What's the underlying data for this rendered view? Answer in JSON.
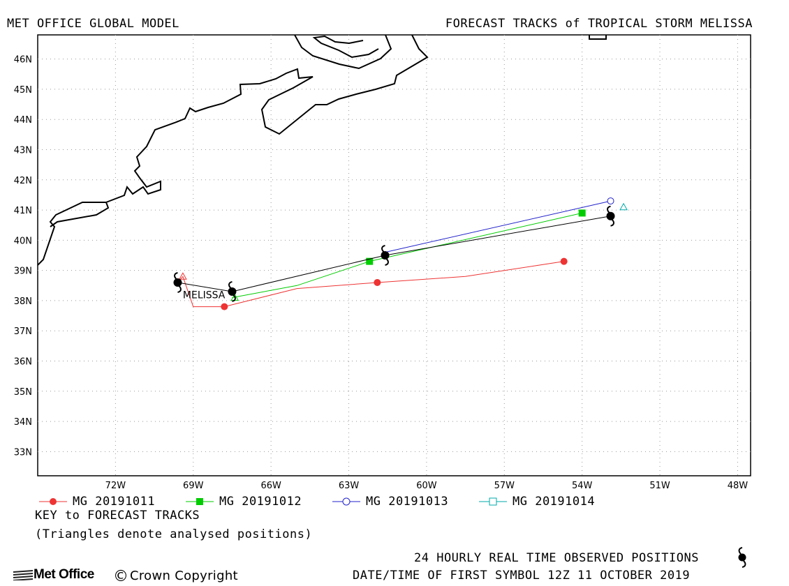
{
  "header": {
    "model": "MET OFFICE GLOBAL MODEL",
    "title": "FORECAST TRACKS of TROPICAL STORM MELISSA"
  },
  "map": {
    "lon_range": [
      -75,
      -47.5
    ],
    "lat_range": [
      32.2,
      46.8
    ],
    "lon_ticks": [
      {
        "value": -72,
        "label": "72W"
      },
      {
        "value": -69,
        "label": "69W"
      },
      {
        "value": -66,
        "label": "66W"
      },
      {
        "value": -63,
        "label": "63W"
      },
      {
        "value": -60,
        "label": "60W"
      },
      {
        "value": -57,
        "label": "57W"
      },
      {
        "value": -54,
        "label": "54W"
      },
      {
        "value": -51,
        "label": "51W"
      },
      {
        "value": -48,
        "label": "48W"
      }
    ],
    "lat_ticks": [
      {
        "value": 33,
        "label": "33N"
      },
      {
        "value": 34,
        "label": "34N"
      },
      {
        "value": 35,
        "label": "35N"
      },
      {
        "value": 36,
        "label": "36N"
      },
      {
        "value": 37,
        "label": "37N"
      },
      {
        "value": 38,
        "label": "38N"
      },
      {
        "value": 39,
        "label": "39N"
      },
      {
        "value": 40,
        "label": "40N"
      },
      {
        "value": 41,
        "label": "41N"
      },
      {
        "value": 42,
        "label": "42N"
      },
      {
        "value": 43,
        "label": "43N"
      },
      {
        "value": 44,
        "label": "44N"
      },
      {
        "value": 45,
        "label": "45N"
      },
      {
        "value": 46,
        "label": "46N"
      }
    ],
    "storm_label": {
      "text": "MELISSA",
      "lon": -69.4,
      "lat": 38.2
    },
    "observed_track": {
      "color": "#000000",
      "points": [
        [
          -69.6,
          38.6
        ],
        [
          -67.5,
          38.3
        ],
        [
          -61.6,
          39.5
        ],
        [
          -52.9,
          40.8
        ]
      ]
    },
    "forecast_tracks": [
      {
        "name": "MG 20191011",
        "color": "#ee3333",
        "marker": "filled-circle",
        "points": [
          [
            -69.6,
            38.6
          ],
          [
            -69.4,
            38.8
          ],
          [
            -69.0,
            37.8
          ],
          [
            -67.8,
            37.8
          ],
          [
            -65.0,
            38.4
          ],
          [
            -61.9,
            38.6
          ],
          [
            -58.5,
            38.8
          ],
          [
            -54.7,
            39.3
          ]
        ],
        "markers": [
          [
            -67.8,
            37.8
          ],
          [
            -61.9,
            38.6
          ],
          [
            -54.7,
            39.3
          ]
        ]
      },
      {
        "name": "MG 20191012",
        "color": "#00cc00",
        "marker": "filled-square",
        "points": [
          [
            -67.5,
            38.1
          ],
          [
            -65.0,
            38.5
          ],
          [
            -62.2,
            39.3
          ],
          [
            -54.0,
            40.9
          ]
        ],
        "markers": [
          [
            -62.2,
            39.3
          ],
          [
            -54.0,
            40.9
          ]
        ]
      },
      {
        "name": "MG 20191013",
        "color": "#2222cc",
        "marker": "open-circle",
        "points": [
          [
            -61.6,
            39.6
          ],
          [
            -52.9,
            41.3
          ]
        ],
        "markers": [
          [
            -52.9,
            41.3
          ]
        ]
      },
      {
        "name": "MG 20191014",
        "color": "#00aaaa",
        "marker": "open-square",
        "points": [],
        "markers": []
      }
    ],
    "analysed_positions": [
      {
        "lon": -69.4,
        "lat": 38.8,
        "color": "#ee3333"
      },
      {
        "lon": -67.4,
        "lat": 38.1,
        "color": "#00cc00"
      },
      {
        "lon": -52.4,
        "lat": 41.1,
        "color": "#00aaaa"
      }
    ]
  },
  "legend": {
    "key_title": "KEY to FORECAST TRACKS",
    "key_note": "(Triangles denote analysed positions)"
  },
  "footer": {
    "observed": "24 HOURLY REAL TIME OBSERVED POSITIONS",
    "date": "DATE/TIME OF FIRST SYMBOL 12Z 11 OCTOBER 2019",
    "brand": "Met Office",
    "copyright": "Crown Copyright"
  }
}
